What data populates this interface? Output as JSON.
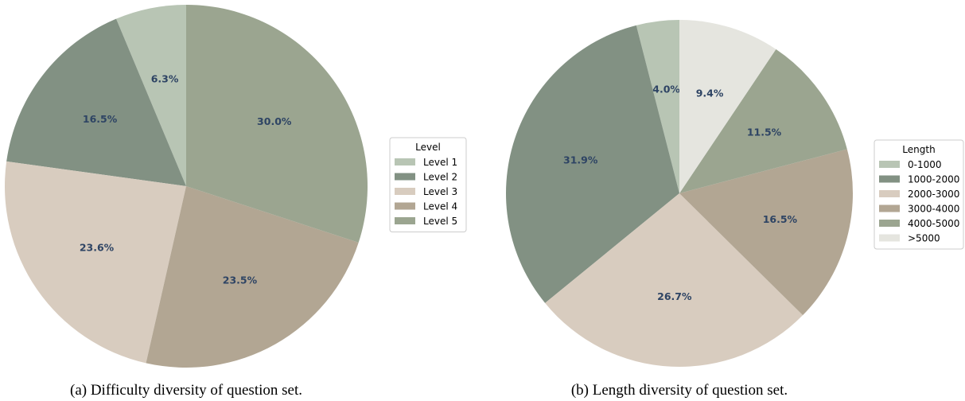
{
  "chart_data": [
    {
      "type": "pie",
      "caption": "(a) Difficulty diversity of question set.",
      "legend": {
        "title": "Level",
        "placement": "right"
      },
      "start_angle": "top",
      "direction": "clockwise-from-last",
      "categories": [
        "Level 1",
        "Level 2",
        "Level 3",
        "Level 4",
        "Level 5"
      ],
      "values": [
        6.3,
        16.5,
        23.6,
        23.5,
        30.0
      ],
      "labels": [
        "6.3%",
        "16.5%",
        "23.6%",
        "23.5%",
        "30.0%"
      ],
      "colors": [
        "#b8c5b4",
        "#829183",
        "#d8ccbf",
        "#b2a693",
        "#9ba590"
      ]
    },
    {
      "type": "pie",
      "caption": "(b) Length diversity of question set.",
      "legend": {
        "title": "Length",
        "placement": "right"
      },
      "start_angle": "top",
      "direction": "clockwise-from-last",
      "categories": [
        "0-1000",
        "1000-2000",
        "2000-3000",
        "3000-4000",
        "4000-5000",
        ">5000"
      ],
      "values": [
        4.0,
        31.9,
        26.7,
        16.5,
        11.5,
        9.4
      ],
      "labels": [
        "4.0%",
        "31.9%",
        "26.7%",
        "16.5%",
        "11.5%",
        "9.4%"
      ],
      "colors": [
        "#b8c5b4",
        "#829183",
        "#d8ccbf",
        "#b2a693",
        "#9ba590",
        "#e5e5df"
      ]
    }
  ]
}
